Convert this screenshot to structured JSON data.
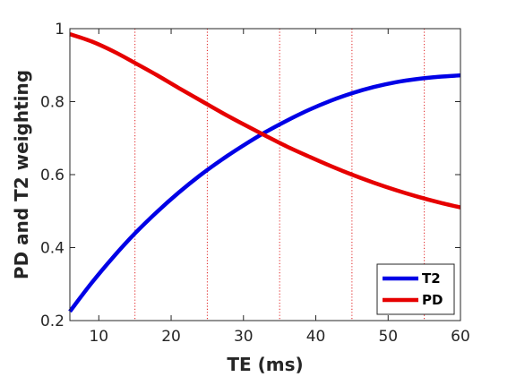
{
  "chart_data": {
    "type": "line",
    "title": "",
    "xlabel": "TE (ms)",
    "ylabel": "PD and T2 weighting",
    "xlim": [
      6,
      60
    ],
    "ylim": [
      0.2,
      1
    ],
    "xticks": [
      10,
      20,
      30,
      40,
      50,
      60
    ],
    "yticks": [
      0.2,
      0.4,
      0.6,
      0.8,
      1
    ],
    "ytick_labels": [
      "0.2",
      "0.4",
      "0.6",
      "0.8",
      "1"
    ],
    "grid": false,
    "legend_position": "bottom-right",
    "vertical_markers": [
      15,
      25,
      35,
      45,
      55
    ],
    "vertical_marker_color": "#e02020",
    "series": [
      {
        "name": "T2",
        "color": "#0000e6",
        "x": [
          6,
          9,
          12,
          15,
          18,
          21,
          24,
          27,
          30,
          33,
          36,
          39,
          42,
          45,
          48,
          51,
          54,
          57,
          60
        ],
        "y": [
          0.225,
          0.303,
          0.374,
          0.439,
          0.497,
          0.55,
          0.598,
          0.641,
          0.68,
          0.716,
          0.748,
          0.777,
          0.802,
          0.823,
          0.84,
          0.853,
          0.862,
          0.868,
          0.872
        ]
      },
      {
        "name": "PD",
        "color": "#e60000",
        "x": [
          6,
          9,
          12,
          15,
          18,
          21,
          24,
          27,
          30,
          33,
          36,
          39,
          42,
          45,
          48,
          51,
          54,
          57,
          60
        ],
        "y": [
          0.985,
          0.965,
          0.938,
          0.906,
          0.873,
          0.838,
          0.804,
          0.77,
          0.738,
          0.707,
          0.677,
          0.65,
          0.624,
          0.6,
          0.578,
          0.558,
          0.54,
          0.524,
          0.51
        ]
      }
    ]
  }
}
